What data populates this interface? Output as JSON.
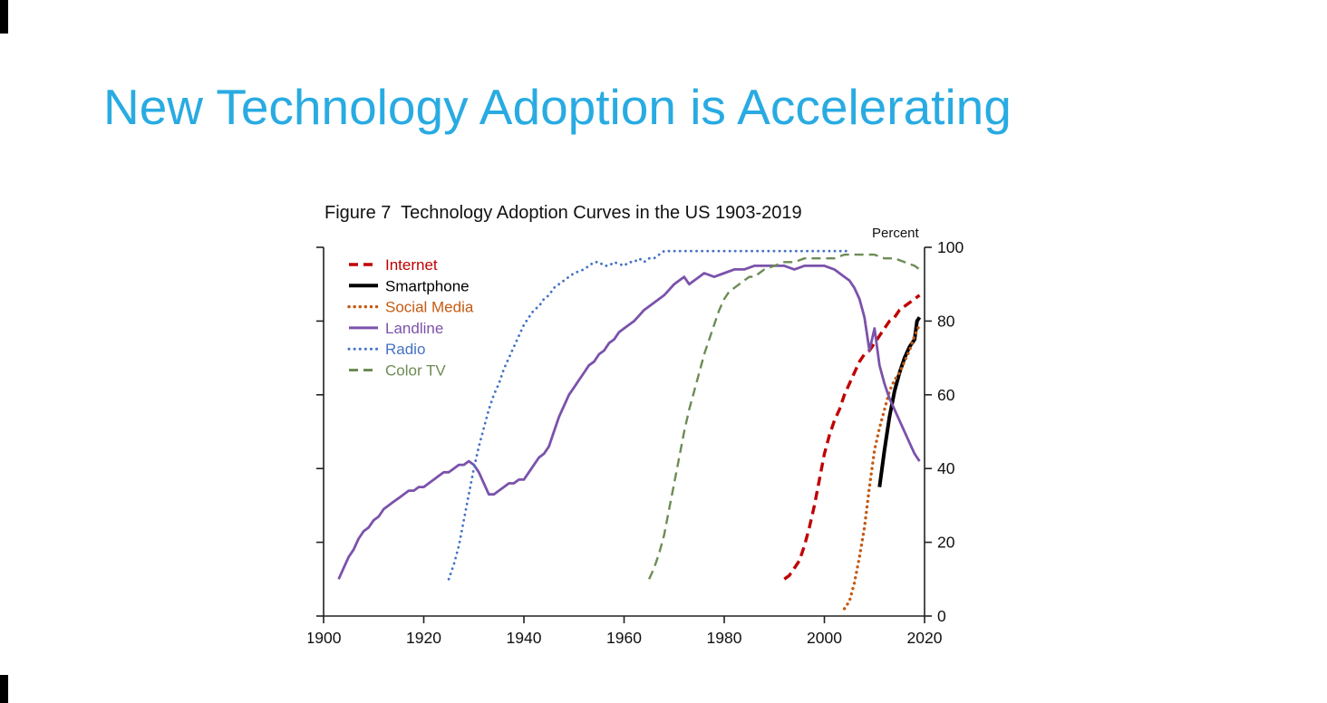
{
  "slide": {
    "title": "New Technology Adoption is Accelerating",
    "title_color": "#29ABE2",
    "background_color": "#FFFFFF"
  },
  "chart_data": {
    "type": "line",
    "title": "Figure 7  Technology Adoption Curves in the US 1903-2019",
    "xlabel": "",
    "ylabel": "Percent",
    "xlim": [
      1900,
      2020
    ],
    "ylim": [
      0,
      100
    ],
    "x_ticks": [
      1900,
      1920,
      1940,
      1960,
      1980,
      2000,
      2020
    ],
    "y_ticks": [
      0,
      20,
      40,
      60,
      80,
      100
    ],
    "grid": false,
    "legend_position": "top-left",
    "series": [
      {
        "name": "Internet",
        "color": "#C00000",
        "dash": "dashed",
        "width": 3.4,
        "points": [
          [
            1992,
            10
          ],
          [
            1993,
            11
          ],
          [
            1994,
            13
          ],
          [
            1995,
            15
          ],
          [
            1996,
            19
          ],
          [
            1997,
            24
          ],
          [
            1998,
            30
          ],
          [
            1999,
            37
          ],
          [
            2000,
            44
          ],
          [
            2001,
            49
          ],
          [
            2002,
            53
          ],
          [
            2003,
            56
          ],
          [
            2004,
            60
          ],
          [
            2005,
            63
          ],
          [
            2006,
            66
          ],
          [
            2007,
            69
          ],
          [
            2008,
            71
          ],
          [
            2009,
            72
          ],
          [
            2010,
            74
          ],
          [
            2011,
            76
          ],
          [
            2012,
            78
          ],
          [
            2013,
            80
          ],
          [
            2014,
            81
          ],
          [
            2015,
            83
          ],
          [
            2016,
            84
          ],
          [
            2017,
            85
          ],
          [
            2018,
            86
          ],
          [
            2019,
            87
          ]
        ]
      },
      {
        "name": "Smartphone",
        "color": "#000000",
        "dash": "solid",
        "width": 4,
        "points": [
          [
            2011,
            35
          ],
          [
            2012,
            45
          ],
          [
            2013,
            54
          ],
          [
            2014,
            61
          ],
          [
            2015,
            66
          ],
          [
            2016,
            70
          ],
          [
            2017,
            73
          ],
          [
            2018,
            75
          ],
          [
            2018.5,
            80
          ],
          [
            2019,
            81
          ]
        ]
      },
      {
        "name": "Social Media",
        "color": "#C55A11",
        "dash": "dotted",
        "width": 3.4,
        "points": [
          [
            2004,
            2
          ],
          [
            2005,
            4
          ],
          [
            2006,
            9
          ],
          [
            2007,
            16
          ],
          [
            2008,
            24
          ],
          [
            2009,
            35
          ],
          [
            2010,
            45
          ],
          [
            2011,
            51
          ],
          [
            2012,
            56
          ],
          [
            2013,
            61
          ],
          [
            2014,
            64
          ],
          [
            2015,
            66
          ],
          [
            2016,
            69
          ],
          [
            2017,
            72
          ],
          [
            2018,
            76
          ],
          [
            2019,
            79
          ]
        ]
      },
      {
        "name": "Landline",
        "color": "#7B52AB",
        "dash": "solid",
        "width": 2.8,
        "points": [
          [
            1903,
            10
          ],
          [
            1904,
            13
          ],
          [
            1905,
            16
          ],
          [
            1906,
            18
          ],
          [
            1907,
            21
          ],
          [
            1908,
            23
          ],
          [
            1909,
            24
          ],
          [
            1910,
            26
          ],
          [
            1911,
            27
          ],
          [
            1912,
            29
          ],
          [
            1913,
            30
          ],
          [
            1914,
            31
          ],
          [
            1915,
            32
          ],
          [
            1916,
            33
          ],
          [
            1917,
            34
          ],
          [
            1918,
            34
          ],
          [
            1919,
            35
          ],
          [
            1920,
            35
          ],
          [
            1921,
            36
          ],
          [
            1922,
            37
          ],
          [
            1923,
            38
          ],
          [
            1924,
            39
          ],
          [
            1925,
            39
          ],
          [
            1926,
            40
          ],
          [
            1927,
            41
          ],
          [
            1928,
            41
          ],
          [
            1929,
            42
          ],
          [
            1930,
            41
          ],
          [
            1931,
            39
          ],
          [
            1932,
            36
          ],
          [
            1933,
            33
          ],
          [
            1934,
            33
          ],
          [
            1935,
            34
          ],
          [
            1936,
            35
          ],
          [
            1937,
            36
          ],
          [
            1938,
            36
          ],
          [
            1939,
            37
          ],
          [
            1940,
            37
          ],
          [
            1941,
            39
          ],
          [
            1942,
            41
          ],
          [
            1943,
            43
          ],
          [
            1944,
            44
          ],
          [
            1945,
            46
          ],
          [
            1946,
            50
          ],
          [
            1947,
            54
          ],
          [
            1948,
            57
          ],
          [
            1949,
            60
          ],
          [
            1950,
            62
          ],
          [
            1951,
            64
          ],
          [
            1952,
            66
          ],
          [
            1953,
            68
          ],
          [
            1954,
            69
          ],
          [
            1955,
            71
          ],
          [
            1956,
            72
          ],
          [
            1957,
            74
          ],
          [
            1958,
            75
          ],
          [
            1959,
            77
          ],
          [
            1960,
            78
          ],
          [
            1962,
            80
          ],
          [
            1964,
            83
          ],
          [
            1966,
            85
          ],
          [
            1968,
            87
          ],
          [
            1970,
            90
          ],
          [
            1971,
            91
          ],
          [
            1972,
            92
          ],
          [
            1973,
            90
          ],
          [
            1974,
            91
          ],
          [
            1975,
            92
          ],
          [
            1976,
            93
          ],
          [
            1978,
            92
          ],
          [
            1980,
            93
          ],
          [
            1982,
            94
          ],
          [
            1984,
            94
          ],
          [
            1986,
            95
          ],
          [
            1988,
            95
          ],
          [
            1990,
            95
          ],
          [
            1992,
            95
          ],
          [
            1994,
            94
          ],
          [
            1996,
            95
          ],
          [
            1998,
            95
          ],
          [
            2000,
            95
          ],
          [
            2002,
            94
          ],
          [
            2004,
            92
          ],
          [
            2005,
            91
          ],
          [
            2006,
            89
          ],
          [
            2007,
            86
          ],
          [
            2008,
            81
          ],
          [
            2009,
            72
          ],
          [
            2010,
            78
          ],
          [
            2011,
            68
          ],
          [
            2012,
            63
          ],
          [
            2013,
            59
          ],
          [
            2014,
            56
          ],
          [
            2015,
            53
          ],
          [
            2016,
            50
          ],
          [
            2017,
            47
          ],
          [
            2018,
            44
          ],
          [
            2019,
            42
          ]
        ]
      },
      {
        "name": "Radio",
        "color": "#4472C4",
        "dash": "dotted",
        "width": 2.8,
        "points": [
          [
            1925,
            10
          ],
          [
            1926,
            14
          ],
          [
            1927,
            19
          ],
          [
            1928,
            26
          ],
          [
            1929,
            33
          ],
          [
            1930,
            40
          ],
          [
            1931,
            46
          ],
          [
            1932,
            51
          ],
          [
            1933,
            56
          ],
          [
            1934,
            60
          ],
          [
            1935,
            63
          ],
          [
            1936,
            67
          ],
          [
            1937,
            70
          ],
          [
            1938,
            73
          ],
          [
            1939,
            76
          ],
          [
            1940,
            79
          ],
          [
            1941,
            81
          ],
          [
            1942,
            83
          ],
          [
            1943,
            84
          ],
          [
            1944,
            86
          ],
          [
            1945,
            87
          ],
          [
            1946,
            89
          ],
          [
            1947,
            90
          ],
          [
            1948,
            91
          ],
          [
            1950,
            93
          ],
          [
            1952,
            94
          ],
          [
            1954,
            96
          ],
          [
            1955,
            96
          ],
          [
            1956,
            95
          ],
          [
            1957,
            95
          ],
          [
            1958,
            96
          ],
          [
            1960,
            95
          ],
          [
            1961,
            96
          ],
          [
            1962,
            96
          ],
          [
            1963,
            97
          ],
          [
            1964,
            96
          ],
          [
            1965,
            97
          ],
          [
            1966,
            97
          ],
          [
            1967,
            98
          ],
          [
            1968,
            99
          ],
          [
            1970,
            99
          ],
          [
            1972,
            99
          ],
          [
            1975,
            99
          ],
          [
            1980,
            99
          ],
          [
            1985,
            99
          ],
          [
            1990,
            99
          ],
          [
            1995,
            99
          ],
          [
            2000,
            99
          ],
          [
            2003,
            99
          ],
          [
            2005,
            99
          ]
        ]
      },
      {
        "name": "Color TV",
        "color": "#6D8C54",
        "dash": "dashed",
        "width": 2.4,
        "points": [
          [
            1965,
            10
          ],
          [
            1966,
            13
          ],
          [
            1967,
            17
          ],
          [
            1968,
            22
          ],
          [
            1969,
            29
          ],
          [
            1970,
            36
          ],
          [
            1971,
            43
          ],
          [
            1972,
            50
          ],
          [
            1973,
            56
          ],
          [
            1974,
            61
          ],
          [
            1975,
            66
          ],
          [
            1976,
            71
          ],
          [
            1977,
            75
          ],
          [
            1978,
            79
          ],
          [
            1979,
            83
          ],
          [
            1980,
            86
          ],
          [
            1981,
            88
          ],
          [
            1982,
            89
          ],
          [
            1983,
            90
          ],
          [
            1984,
            91
          ],
          [
            1985,
            92
          ],
          [
            1986,
            92
          ],
          [
            1987,
            93
          ],
          [
            1988,
            94
          ],
          [
            1990,
            95
          ],
          [
            1992,
            96
          ],
          [
            1994,
            96
          ],
          [
            1996,
            97
          ],
          [
            1998,
            97
          ],
          [
            2000,
            97
          ],
          [
            2002,
            97
          ],
          [
            2004,
            98
          ],
          [
            2006,
            98
          ],
          [
            2008,
            98
          ],
          [
            2010,
            98
          ],
          [
            2012,
            97
          ],
          [
            2014,
            97
          ],
          [
            2016,
            96
          ],
          [
            2018,
            95
          ],
          [
            2019,
            94
          ]
        ]
      }
    ]
  }
}
